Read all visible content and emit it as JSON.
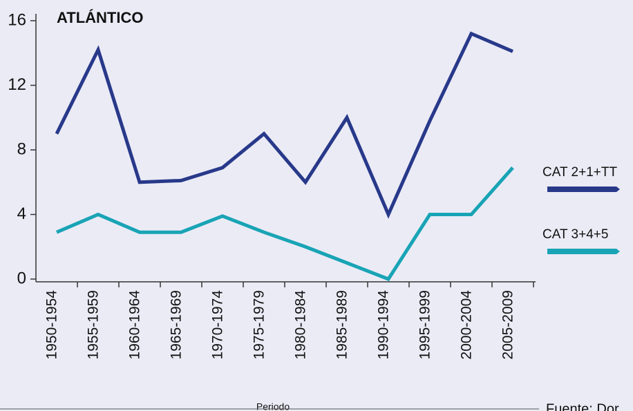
{
  "chart_data": {
    "type": "line",
    "title": "ATLÁNTICO",
    "categories": [
      "1950-1954",
      "1955-1959",
      "1960-1964",
      "1965-1969",
      "1970-1974",
      "1975-1979",
      "1980-1984",
      "1985-1989",
      "1990-1994",
      "1995-1999",
      "2000-2004",
      "2005-2009"
    ],
    "series": [
      {
        "name": "CAT 2+1+TT",
        "color": "#28398a",
        "values": [
          9,
          14.2,
          6,
          6.1,
          6.9,
          9,
          6,
          10,
          4,
          9.8,
          15.2,
          14.1
        ]
      },
      {
        "name": "CAT 3+4+5",
        "color": "#19a4b5",
        "values": [
          2.9,
          4,
          2.9,
          2.9,
          3.9,
          2.9,
          2,
          1,
          0,
          4,
          4,
          6.9
        ]
      }
    ],
    "ylim": [
      0,
      16
    ],
    "yticks": [
      0,
      4,
      8,
      12,
      16
    ],
    "xlabel": "Periodo",
    "source": "Fuente: Dor"
  }
}
